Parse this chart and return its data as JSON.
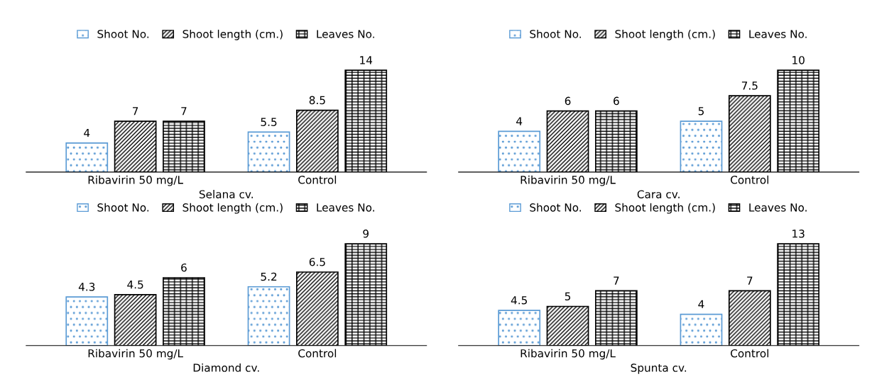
{
  "chart_data": [
    {
      "type": "bar",
      "xlabel": "Selana cv.",
      "categories": [
        "Ribavirin 50 mg/L",
        "Control"
      ],
      "legend": "top",
      "data_labels": true,
      "tick_labels": "x",
      "series": [
        {
          "name": "Shoot No.",
          "color": "#5b9bd5",
          "values": [
            4,
            5.5
          ]
        },
        {
          "name": "Shoot length (cm.)",
          "color": "#000000",
          "values": [
            7,
            8.5
          ]
        },
        {
          "name": "Leaves No.",
          "color": "#000000",
          "values": [
            7,
            14
          ]
        }
      ]
    },
    {
      "type": "bar",
      "xlabel": "Cara cv.",
      "categories": [
        "Ribavirin 50 mg/L",
        "Control"
      ],
      "legend": "top",
      "data_labels": true,
      "tick_labels": "x",
      "series": [
        {
          "name": "Shoot No.",
          "color": "#5b9bd5",
          "values": [
            4,
            5
          ]
        },
        {
          "name": "Shoot length (cm.)",
          "color": "#000000",
          "values": [
            6,
            7.5
          ]
        },
        {
          "name": "Leaves No.",
          "color": "#000000",
          "values": [
            6,
            10
          ]
        }
      ]
    },
    {
      "type": "bar",
      "xlabel": "Diamond cv.",
      "categories": [
        "Ribavirin 50 mg/L",
        "Control"
      ],
      "legend": "top",
      "data_labels": true,
      "tick_labels": "x",
      "series": [
        {
          "name": "Shoot No.",
          "color": "#5b9bd5",
          "values": [
            4.3,
            5.2
          ]
        },
        {
          "name": "Shoot length (cm.)",
          "color": "#000000",
          "values": [
            4.5,
            6.5
          ]
        },
        {
          "name": "Leaves No.",
          "color": "#000000",
          "values": [
            6,
            9
          ]
        }
      ]
    },
    {
      "type": "bar",
      "xlabel": "Spunta cv.",
      "categories": [
        "Ribavirin 50 mg/L",
        "Control"
      ],
      "legend": "top",
      "data_labels": true,
      "tick_labels": "x",
      "series": [
        {
          "name": "Shoot No.",
          "color": "#5b9bd5",
          "values": [
            4.5,
            4
          ]
        },
        {
          "name": "Shoot length (cm.)",
          "color": "#000000",
          "values": [
            5,
            7
          ]
        },
        {
          "name": "Leaves No.",
          "color": "#000000",
          "values": [
            7,
            13
          ]
        }
      ]
    }
  ]
}
